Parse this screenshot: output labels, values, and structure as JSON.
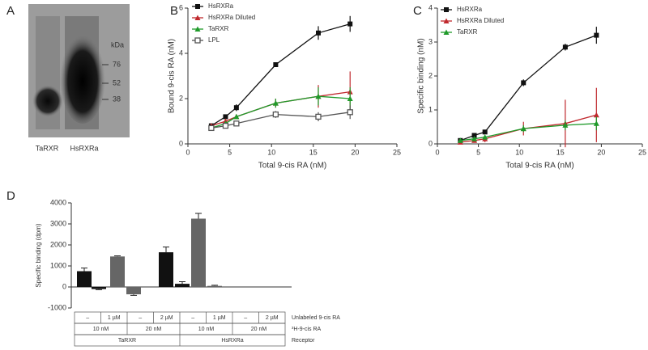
{
  "gel": {
    "panel_label": "A",
    "unit": "kDa",
    "markers": [
      "76",
      "52",
      "38"
    ],
    "lanes": [
      "TaRXR",
      "HsRXRa"
    ]
  },
  "chart_data": [
    {
      "type": "line",
      "panel_label": "B",
      "x_label": "Total 9-cis RA (nM)",
      "y_label": "Bound 9-cis RA (nM)",
      "xlim": [
        0,
        25
      ],
      "xticks": [
        0,
        5,
        10,
        15,
        20,
        25
      ],
      "ylim": [
        0,
        6
      ],
      "yticks": [
        0,
        2,
        4,
        6
      ],
      "x": [
        2.8,
        4.5,
        5.8,
        10.5,
        15.6,
        19.4
      ],
      "series": [
        {
          "name": "HsRXRa",
          "color": "#111111",
          "marker": "square",
          "values": [
            0.8,
            1.2,
            1.6,
            3.5,
            4.9,
            5.3
          ],
          "errors": [
            0.1,
            0.1,
            0.15,
            0.1,
            0.3,
            0.35
          ]
        },
        {
          "name": "HsRXRa Diluted",
          "color": "#c0282d",
          "marker": "triangle",
          "values": [
            0.8,
            1.0,
            1.2,
            1.8,
            2.1,
            2.3
          ],
          "errors": [
            0.1,
            0.1,
            0.1,
            0.2,
            0.5,
            0.9
          ]
        },
        {
          "name": "TaRXR",
          "color": "#1f9a2a",
          "marker": "triangle",
          "values": [
            0.7,
            0.9,
            1.2,
            1.8,
            2.1,
            2.0
          ],
          "errors": [
            0.1,
            0.1,
            0.1,
            0.2,
            0.4,
            0.5
          ]
        },
        {
          "name": "LPL",
          "color": "#555555",
          "marker": "open",
          "values": [
            0.7,
            0.8,
            0.9,
            1.3,
            1.2,
            1.4
          ],
          "errors": [
            0.1,
            0.1,
            0.1,
            0.15,
            0.2,
            0.3
          ]
        }
      ]
    },
    {
      "type": "line",
      "panel_label": "C",
      "x_label": "Total 9-cis RA (nM)",
      "y_label": "Specific binding (nM)",
      "xlim": [
        0,
        25
      ],
      "xticks": [
        0,
        5,
        10,
        15,
        20,
        25
      ],
      "ylim": [
        0,
        4
      ],
      "yticks": [
        0,
        1,
        2,
        3,
        4
      ],
      "x": [
        2.8,
        4.5,
        5.8,
        10.5,
        15.6,
        19.4
      ],
      "series": [
        {
          "name": "HsRXRa",
          "color": "#111111",
          "marker": "square",
          "values": [
            0.1,
            0.25,
            0.35,
            1.8,
            2.85,
            3.2
          ],
          "errors": [
            0.05,
            0.05,
            0.05,
            0.1,
            0.1,
            0.25
          ]
        },
        {
          "name": "HsRXRa Diluted",
          "color": "#c0282d",
          "marker": "triangle",
          "values": [
            0.05,
            0.1,
            0.15,
            0.45,
            0.6,
            0.85
          ],
          "errors": [
            0.05,
            0.05,
            0.1,
            0.2,
            0.7,
            0.8
          ]
        },
        {
          "name": "TaRXR",
          "color": "#1f9a2a",
          "marker": "triangle",
          "values": [
            0.1,
            0.15,
            0.2,
            0.45,
            0.55,
            0.6
          ],
          "errors": [
            0.05,
            0.05,
            0.05,
            0.1,
            0.15,
            0.2
          ]
        }
      ]
    },
    {
      "type": "bar",
      "panel_label": "D",
      "y_label": "Specific binding (dpm)",
      "ylim": [
        -1000,
        4000
      ],
      "yticks": [
        -1000,
        0,
        1000,
        2000,
        3000,
        4000
      ],
      "values": [
        750,
        -100,
        1450,
        -350,
        1650,
        150,
        3250,
        50
      ],
      "errors": [
        150,
        30,
        30,
        50,
        250,
        100,
        250,
        30
      ],
      "colors": [
        "#111111",
        "#111111",
        "#666666",
        "#666666",
        "#111111",
        "#111111",
        "#666666",
        "#666666"
      ],
      "table": [
        {
          "label": "Unlabeled 9-cis RA",
          "cells": [
            "–",
            "1 µM",
            "–",
            "2 µM",
            "–",
            "1 µM",
            "–",
            "2 µM"
          ]
        },
        {
          "label": "³H-9-cis RA",
          "cells": [
            "10 nM",
            "20 nM",
            "10 nM",
            "20 nM"
          ]
        },
        {
          "label": "Receptor",
          "cells": [
            "TaRXR",
            "HsRXRa"
          ]
        }
      ]
    }
  ]
}
